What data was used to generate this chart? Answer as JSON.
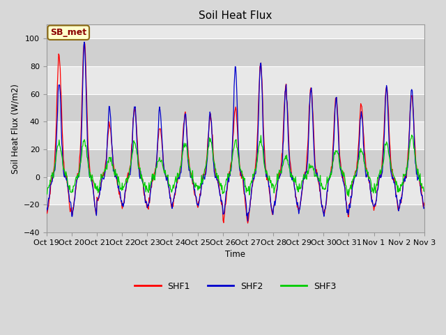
{
  "title": "Soil Heat Flux",
  "ylabel": "Soil Heat Flux (W/m2)",
  "xlabel": "Time",
  "ylim": [
    -40,
    110
  ],
  "yticks": [
    -40,
    -20,
    0,
    20,
    40,
    60,
    80,
    100
  ],
  "background_color": "#d8d8d8",
  "plot_bg_light": "#e8e8e8",
  "plot_bg_dark": "#d0d0d0",
  "legend_labels": [
    "SHF1",
    "SHF2",
    "SHF3"
  ],
  "legend_colors": [
    "#ff0000",
    "#0000cc",
    "#00cc00"
  ],
  "annotation_text": "SB_met",
  "annotation_color": "#8B0000",
  "annotation_bg": "#ffffcc",
  "n_days": 15,
  "x_labels": [
    "Oct 19",
    "Oct 20",
    "Oct 21",
    "Oct 22",
    "Oct 23",
    "Oct 24",
    "Oct 25",
    "Oct 26",
    "Oct 27",
    "Oct 28",
    "Oct 29",
    "Oct 30",
    "Oct 31",
    "Nov 1",
    "Nov 2",
    "Nov 3"
  ]
}
